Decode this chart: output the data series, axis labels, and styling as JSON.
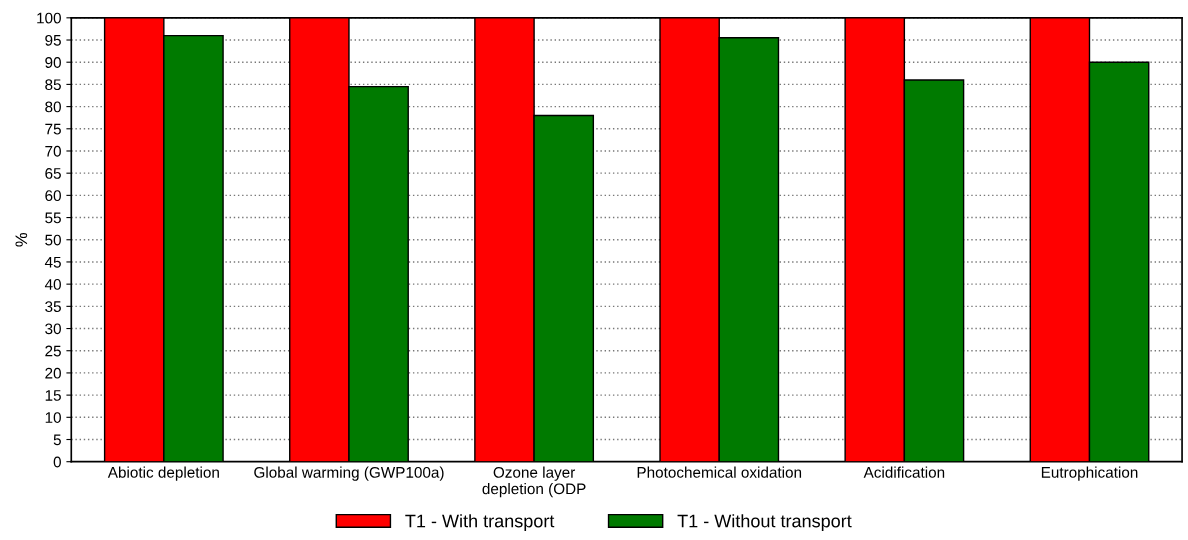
{
  "chart_data": {
    "type": "bar",
    "ylabel": "%",
    "categories": [
      "Abiotic depletion",
      "Global warming (GWP100a)",
      "Ozone layer\ndepletion (ODP",
      "Photochemical oxidation",
      "Acidification",
      "Eutrophication"
    ],
    "series": [
      {
        "name": "T1 - With transport",
        "color": "#ff0000",
        "values": [
          100,
          100,
          100,
          100,
          100,
          100
        ]
      },
      {
        "name": "T1 - Without transport",
        "color": "#007a00",
        "values": [
          96,
          84.5,
          78,
          95.5,
          86,
          90
        ]
      }
    ],
    "ylim": [
      0,
      100
    ],
    "yticks": [
      0,
      5,
      10,
      15,
      20,
      25,
      30,
      35,
      40,
      45,
      50,
      55,
      60,
      65,
      70,
      75,
      80,
      85,
      90,
      95,
      100
    ],
    "grid": "y",
    "legend": "bottom"
  }
}
